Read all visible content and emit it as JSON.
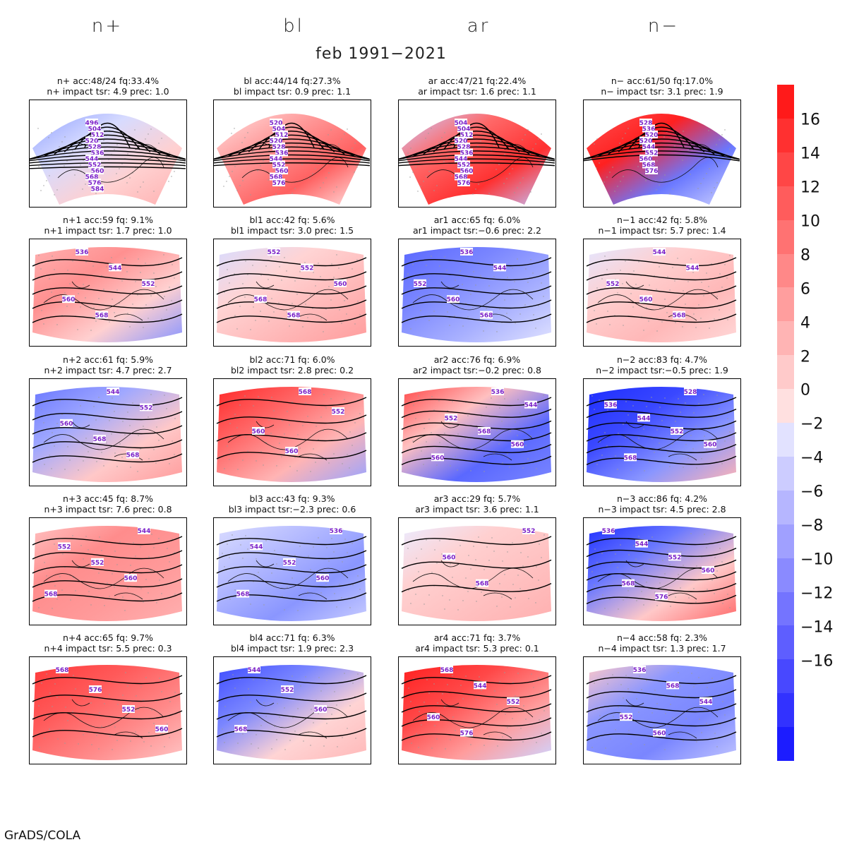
{
  "columns": [
    "n+",
    "bl",
    "ar",
    "n−"
  ],
  "suptitle": "feb 1991−2021",
  "footer": "GrADS/COLA",
  "colorbar": {
    "labels": [
      "16",
      "14",
      "12",
      "10",
      "8",
      "6",
      "4",
      "2",
      "0",
      "−2",
      "−4",
      "−6",
      "−8",
      "−10",
      "−12",
      "−14",
      "−16"
    ],
    "colors": [
      "#ff1a1a",
      "#ff3030",
      "#ff4646",
      "#ff5c5c",
      "#ff7272",
      "#ff8888",
      "#ff9e9e",
      "#ffb4b4",
      "#ffcaca",
      "#ffe0e0",
      "#e2e2ff",
      "#ccccff",
      "#b6b6ff",
      "#a0a0ff",
      "#8a8aff",
      "#7474ff",
      "#5e5eff",
      "#4848ff",
      "#3232ff",
      "#1c1cff"
    ]
  },
  "panels": [
    {
      "id": "n+",
      "line1": "n+ acc:48/24 fq:33.4%",
      "line2": "n+ impact tsr: 4.9 prec: 1.0",
      "labels": [
        "496",
        "504",
        "512",
        "520",
        "528",
        "536",
        "544",
        "552",
        "560",
        "568",
        "576",
        "584"
      ]
    },
    {
      "id": "bl",
      "line1": "bl acc:44/14 fq:27.3%",
      "line2": "bl impact tsr: 0.9 prec: 1.1",
      "labels": [
        "520",
        "504",
        "512",
        "520",
        "528",
        "536",
        "544",
        "552",
        "560",
        "568",
        "576"
      ]
    },
    {
      "id": "ar",
      "line1": "ar acc:47/21 fq:22.4%",
      "line2": "ar impact tsr: 1.6 prec: 1.1",
      "labels": [
        "504",
        "504",
        "512",
        "520",
        "528",
        "536",
        "544",
        "552",
        "560",
        "568",
        "576"
      ]
    },
    {
      "id": "n-",
      "line1": "n− acc:61/50 fq:17.0%",
      "line2": "n− impact tsr: 3.1 prec: 1.9",
      "labels": [
        "528",
        "536",
        "520",
        "520",
        "544",
        "552",
        "560",
        "568",
        "576"
      ]
    },
    {
      "id": "n+1",
      "line1": "n+1 acc:59 fq: 9.1%",
      "line2": "n+1 impact tsr: 1.7 prec: 1.0",
      "labels": [
        "536",
        "544",
        "552",
        "560",
        "568"
      ]
    },
    {
      "id": "bl1",
      "line1": "bl1 acc:42 fq: 5.6%",
      "line2": "bl1 impact tsr: 3.0 prec: 1.5",
      "labels": [
        "552",
        "552",
        "560",
        "568",
        "568"
      ]
    },
    {
      "id": "ar1",
      "line1": "ar1 acc:65 fq: 6.0%",
      "line2": "ar1 impact tsr:−0.6 prec: 2.2",
      "labels": [
        "536",
        "544",
        "552",
        "560",
        "568"
      ]
    },
    {
      "id": "n-1",
      "line1": "n−1 acc:42 fq: 5.8%",
      "line2": "n−1 impact tsr: 5.7 prec: 1.4",
      "labels": [
        "544",
        "544",
        "552",
        "560",
        "568"
      ]
    },
    {
      "id": "n+2",
      "line1": "n+2 acc:61 fq: 5.9%",
      "line2": "n+2 impact tsr: 4.7 prec: 2.7",
      "labels": [
        "544",
        "552",
        "560",
        "568",
        "568"
      ]
    },
    {
      "id": "bl2",
      "line1": "bl2 acc:71 fq: 6.0%",
      "line2": "bl2 impact tsr: 2.8 prec: 0.2",
      "labels": [
        "568",
        "552",
        "560",
        "560"
      ]
    },
    {
      "id": "ar2",
      "line1": "ar2 acc:76 fq: 6.9%",
      "line2": "ar2 impact tsr:−0.2 prec: 0.8",
      "labels": [
        "536",
        "544",
        "552",
        "568",
        "560",
        "560"
      ]
    },
    {
      "id": "n-2",
      "line1": "n−2 acc:83 fq: 4.7%",
      "line2": "n−2 impact tsr:−0.5 prec: 1.9",
      "labels": [
        "528",
        "536",
        "544",
        "552",
        "560",
        "568"
      ]
    },
    {
      "id": "n+3",
      "line1": "n+3 acc:45 fq: 8.7%",
      "line2": "n+3 impact tsr: 7.6 prec: 0.8",
      "labels": [
        "544",
        "552",
        "552",
        "560",
        "568"
      ]
    },
    {
      "id": "bl3",
      "line1": "bl3 acc:43 fq: 9.3%",
      "line2": "bl3 impact tsr:−2.3 prec: 0.6",
      "labels": [
        "536",
        "544",
        "552",
        "560",
        "568"
      ]
    },
    {
      "id": "ar3",
      "line1": "ar3 acc:29 fq: 5.7%",
      "line2": "ar3 impact tsr: 3.6 prec: 1.1",
      "labels": [
        "552",
        "560",
        "568"
      ]
    },
    {
      "id": "n-3",
      "line1": "n−3 acc:86 fq: 4.2%",
      "line2": "n−3 impact tsr: 4.5 prec: 2.8",
      "labels": [
        "536",
        "544",
        "552",
        "560",
        "568",
        "576"
      ]
    },
    {
      "id": "n+4",
      "line1": "n+4 acc:65 fq: 9.7%",
      "line2": "n+4 impact tsr: 5.5 prec: 0.3",
      "labels": [
        "568",
        "576",
        "552",
        "560"
      ]
    },
    {
      "id": "bl4",
      "line1": "bl4 acc:71 fq: 6.3%",
      "line2": "bl4 impact tsr: 1.9 prec: 2.3",
      "labels": [
        "544",
        "552",
        "560",
        "568"
      ]
    },
    {
      "id": "ar4",
      "line1": "ar4 acc:71 fq: 3.7%",
      "line2": "ar4 impact tsr: 5.3 prec: 0.1",
      "labels": [
        "568",
        "544",
        "552",
        "560",
        "576"
      ]
    },
    {
      "id": "n-4",
      "line1": "n−4 acc:58 fq: 2.3%",
      "line2": "n−4 impact tsr: 1.3 prec: 1.7",
      "labels": [
        "536",
        "568",
        "544",
        "552",
        "560"
      ]
    }
  ]
}
